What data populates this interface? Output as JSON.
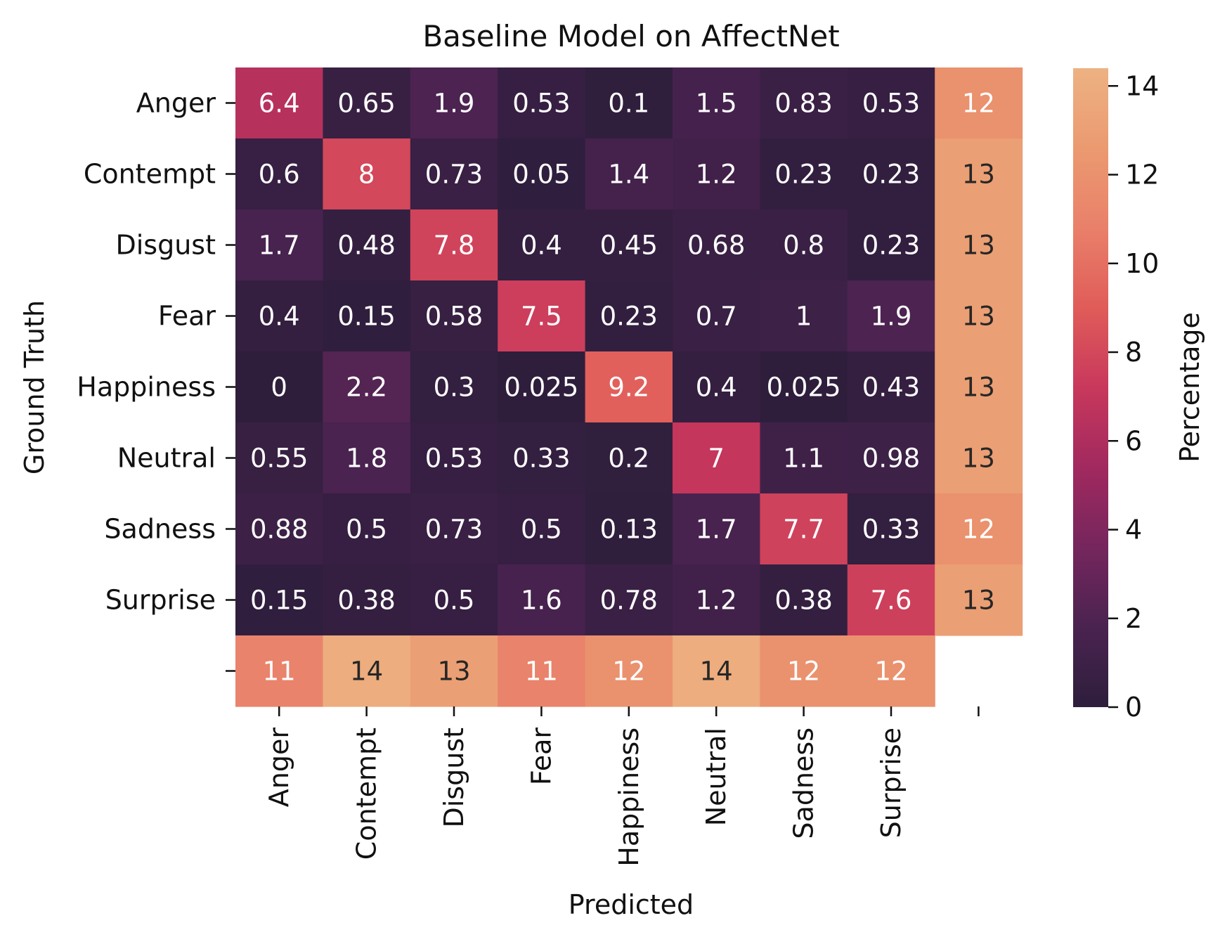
{
  "chart_data": {
    "type": "heatmap",
    "title": "Baseline Model on AffectNet",
    "xlabel": "Predicted",
    "ylabel": "Ground Truth",
    "colorbar_label": "Percentage",
    "rows": [
      "Anger",
      "Contempt",
      "Disgust",
      "Fear",
      "Happiness",
      "Neutral",
      "Sadness",
      "Surprise",
      ""
    ],
    "cols": [
      "Anger",
      "Contempt",
      "Disgust",
      "Fear",
      "Happiness",
      "Neutral",
      "Sadness",
      "Surprise",
      ""
    ],
    "values": [
      [
        6.4,
        0.65,
        1.9,
        0.53,
        0.1,
        1.5,
        0.83,
        0.53,
        12
      ],
      [
        0.6,
        8,
        0.73,
        0.05,
        1.4,
        1.2,
        0.23,
        0.23,
        13
      ],
      [
        1.7,
        0.48,
        7.8,
        0.4,
        0.45,
        0.68,
        0.8,
        0.23,
        13
      ],
      [
        0.4,
        0.15,
        0.58,
        7.5,
        0.23,
        0.7,
        1,
        1.9,
        13
      ],
      [
        0,
        2.2,
        0.3,
        0.025,
        9.2,
        0.4,
        0.025,
        0.43,
        13
      ],
      [
        0.55,
        1.8,
        0.53,
        0.33,
        0.2,
        7,
        1.1,
        0.98,
        13
      ],
      [
        0.88,
        0.5,
        0.73,
        0.5,
        0.13,
        1.7,
        7.7,
        0.33,
        12
      ],
      [
        0.15,
        0.38,
        0.5,
        1.6,
        0.78,
        1.2,
        0.38,
        7.6,
        13
      ],
      [
        11,
        14,
        13,
        11,
        12,
        14,
        12,
        12,
        null
      ]
    ],
    "colorbar_range": [
      0,
      14.4
    ],
    "colorbar_ticks": [
      "0",
      "2",
      "4",
      "6",
      "8",
      "10",
      "12",
      "14"
    ],
    "colormap": [
      "#2e1e3c",
      "#4a2350",
      "#75265d",
      "#a1295f",
      "#c8385c",
      "#e05c59",
      "#e9806a",
      "#eb9a70",
      "#edb282"
    ]
  }
}
